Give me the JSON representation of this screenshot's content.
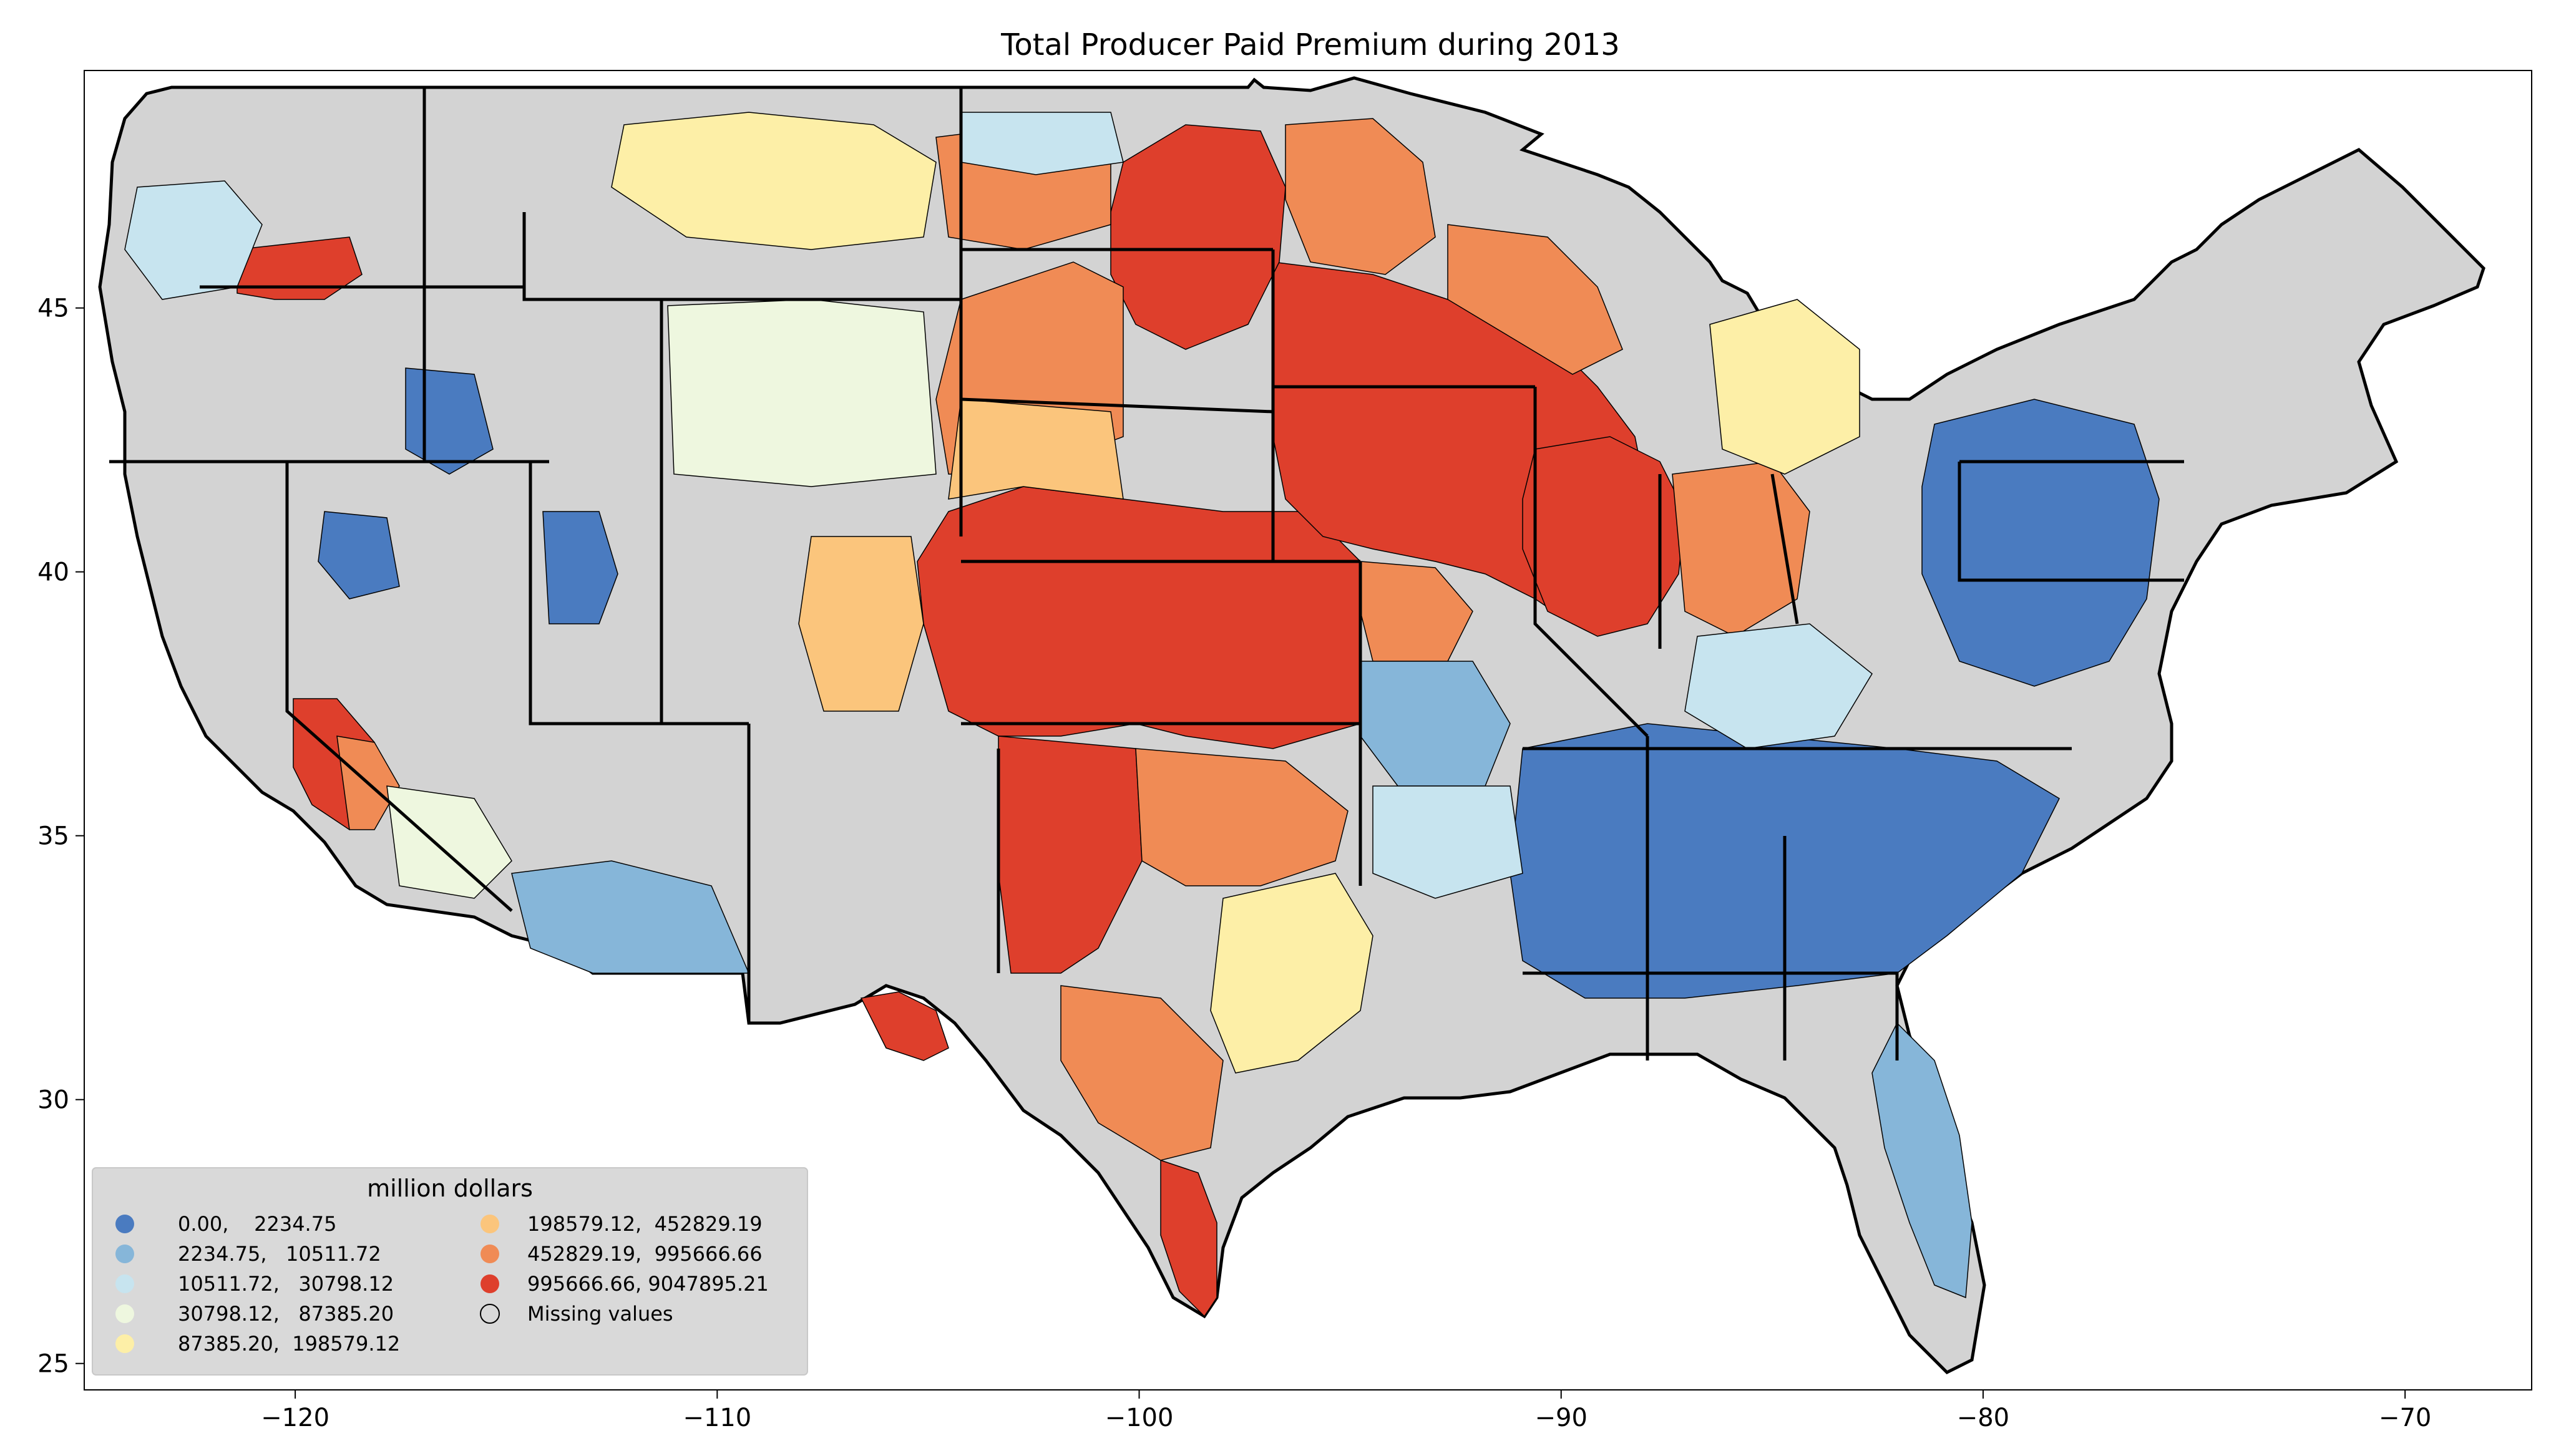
{
  "title": "Total Producer Paid Premium during 2013",
  "x_ticks": [
    {
      "value": -120,
      "label": "−120"
    },
    {
      "value": -110,
      "label": "−110"
    },
    {
      "value": -100,
      "label": "−100"
    },
    {
      "value": -90,
      "label": "−90"
    },
    {
      "value": -80,
      "label": "−80"
    },
    {
      "value": -70,
      "label": "−70"
    }
  ],
  "y_ticks": [
    {
      "value": 25,
      "label": "25"
    },
    {
      "value": 30,
      "label": "30"
    },
    {
      "value": 35,
      "label": "35"
    },
    {
      "value": 40,
      "label": "40"
    },
    {
      "value": 45,
      "label": "45"
    }
  ],
  "axis_ranges": {
    "lon": [
      -125,
      -67
    ],
    "lat": [
      24.5,
      49.5
    ]
  },
  "missing_color": "#d3d3d3",
  "legend": {
    "title": "million dollars",
    "placement": "lower-left",
    "entries": [
      {
        "label": "0.00,    2234.75",
        "color": "#4a7bc0"
      },
      {
        "label": "2234.75,   10511.72",
        "color": "#86b6d9"
      },
      {
        "label": "10511.72,   30798.12",
        "color": "#c7e4ef"
      },
      {
        "label": "30798.12,   87385.20",
        "color": "#eef7df"
      },
      {
        "label": "87385.20,  198579.12",
        "color": "#fdefa7"
      },
      {
        "label": "198579.12,  452829.19",
        "color": "#fbc57c"
      },
      {
        "label": "452829.19,  995666.66",
        "color": "#f08b55"
      },
      {
        "label": "995666.66, 9047895.21",
        "color": "#de3f2c"
      },
      {
        "label": "Missing values",
        "color": "none"
      }
    ]
  }
}
